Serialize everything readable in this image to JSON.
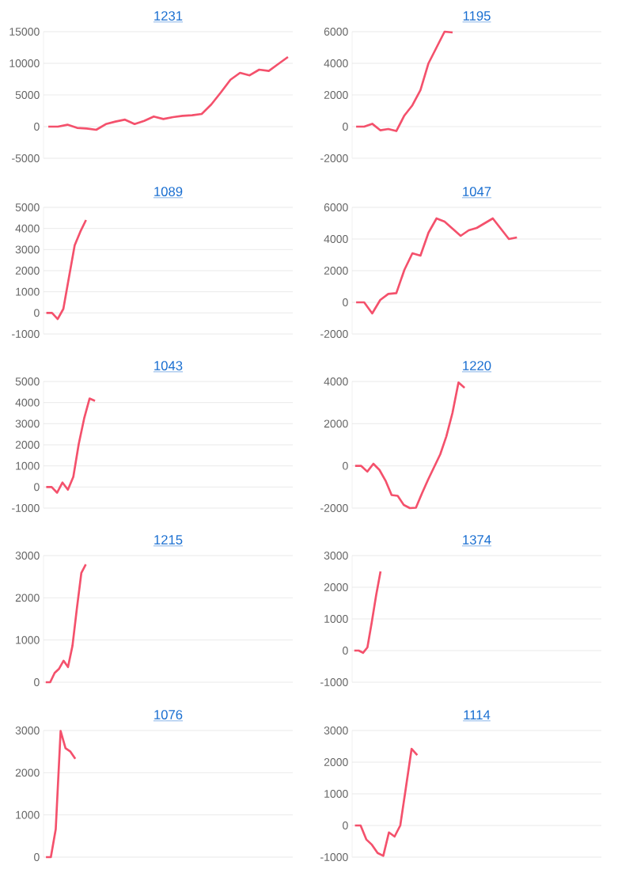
{
  "chart_data": [
    {
      "type": "line",
      "title": "1231",
      "categories": [
        null,
        null,
        null,
        null,
        null,
        null,
        null,
        null,
        null,
        null,
        null,
        null,
        null,
        null,
        null,
        null,
        null,
        null,
        null,
        null,
        null,
        null,
        null,
        null,
        null,
        null
      ],
      "series": [
        {
          "color": "#f4516c",
          "values": [
            0,
            0,
            300,
            -200,
            -300,
            -500,
            400,
            800,
            1100,
            400,
            900,
            1600,
            1200,
            1500,
            1700,
            1800,
            2000,
            3500,
            5400,
            7400,
            8500,
            8100,
            9000,
            8800,
            9900,
            11000
          ]
        }
      ],
      "ylim": [
        -5000,
        15000
      ],
      "yticks": [
        -5000,
        0,
        5000,
        10000,
        15000
      ],
      "grid": "y",
      "tick_labels": "y"
    },
    {
      "type": "line",
      "title": "1195",
      "categories": [
        null,
        null,
        null,
        null,
        null,
        null,
        null,
        null,
        null,
        null,
        null,
        null,
        null,
        null,
        null,
        null,
        null,
        null,
        null,
        null,
        null,
        null,
        null,
        null,
        null,
        null,
        null,
        null,
        null,
        null,
        null
      ],
      "series": [
        {
          "color": "#f4516c",
          "values": [
            0,
            0,
            180,
            -230,
            -150,
            -280,
            700,
            1350,
            2300,
            4000,
            5000,
            6000,
            5950,
            null,
            null,
            null,
            null,
            null,
            null,
            null,
            null,
            null,
            null,
            null,
            null,
            null,
            null,
            null,
            null,
            null,
            null
          ]
        }
      ],
      "ylim": [
        -2000,
        6000
      ],
      "yticks": [
        -2000,
        0,
        2000,
        4000,
        6000
      ],
      "grid": "y",
      "tick_labels": "y"
    },
    {
      "type": "line",
      "title": "1089",
      "categories": [
        null,
        null,
        null,
        null,
        null,
        null,
        null,
        null,
        null,
        null,
        null,
        null,
        null,
        null,
        null,
        null,
        null,
        null,
        null,
        null,
        null,
        null,
        null,
        null,
        null,
        null,
        null,
        null,
        null,
        null,
        null,
        null,
        null,
        null,
        null,
        null,
        null,
        null,
        null,
        null,
        null,
        null,
        null,
        null
      ],
      "series": [
        {
          "color": "#f4516c",
          "values": [
            0,
            0,
            -290,
            190,
            1700,
            3200,
            3850,
            4400,
            null,
            null,
            null,
            null,
            null,
            null,
            null,
            null,
            null,
            null,
            null,
            null,
            null,
            null,
            null,
            null,
            null,
            null,
            null,
            null,
            null,
            null,
            null,
            null,
            null,
            null,
            null,
            null,
            null,
            null,
            null,
            null,
            null,
            null,
            null,
            null
          ]
        }
      ],
      "ylim": [
        -1000,
        5000
      ],
      "yticks": [
        -1000,
        0,
        1000,
        2000,
        3000,
        4000,
        5000
      ],
      "grid": "y",
      "tick_labels": "y"
    },
    {
      "type": "line",
      "title": "1047",
      "categories": [
        null,
        null,
        null,
        null,
        null,
        null,
        null,
        null,
        null,
        null,
        null,
        null,
        null,
        null,
        null,
        null,
        null,
        null,
        null,
        null,
        null,
        null,
        null,
        null,
        null,
        null,
        null,
        null,
        null,
        null,
        null
      ],
      "series": [
        {
          "color": "#f4516c",
          "values": [
            0,
            0,
            -700,
            150,
            530,
            580,
            2050,
            3100,
            2950,
            4400,
            5300,
            5100,
            4650,
            4200,
            4550,
            4700,
            5000,
            5300,
            4650,
            4000,
            4100,
            null,
            null,
            null,
            null,
            null,
            null,
            null,
            null,
            null,
            null
          ]
        }
      ],
      "ylim": [
        -2000,
        6000
      ],
      "yticks": [
        -2000,
        0,
        2000,
        4000,
        6000
      ],
      "grid": "y",
      "tick_labels": "y"
    },
    {
      "type": "line",
      "title": "1043",
      "categories": [
        null,
        null,
        null,
        null,
        null,
        null,
        null,
        null,
        null,
        null,
        null,
        null,
        null,
        null,
        null,
        null,
        null,
        null,
        null,
        null,
        null,
        null,
        null,
        null,
        null,
        null,
        null,
        null,
        null,
        null,
        null,
        null,
        null,
        null,
        null,
        null,
        null,
        null,
        null,
        null,
        null,
        null,
        null,
        null,
        null,
        null
      ],
      "series": [
        {
          "color": "#f4516c",
          "values": [
            0,
            0,
            -270,
            210,
            -130,
            480,
            2040,
            3250,
            4190,
            4080,
            null,
            null,
            null,
            null,
            null,
            null,
            null,
            null,
            null,
            null,
            null,
            null,
            null,
            null,
            null,
            null,
            null,
            null,
            null,
            null,
            null,
            null,
            null,
            null,
            null,
            null,
            null,
            null,
            null,
            null,
            null,
            null,
            null,
            null,
            null,
            null
          ]
        }
      ],
      "ylim": [
        -1000,
        5000
      ],
      "yticks": [
        -1000,
        0,
        1000,
        2000,
        3000,
        4000,
        5000
      ],
      "grid": "y",
      "tick_labels": "y"
    },
    {
      "type": "line",
      "title": "1220",
      "categories": [
        null,
        null,
        null,
        null,
        null,
        null,
        null,
        null,
        null,
        null,
        null,
        null,
        null,
        null,
        null,
        null,
        null,
        null,
        null,
        null,
        null,
        null,
        null,
        null,
        null,
        null,
        null,
        null,
        null,
        null,
        null,
        null,
        null,
        null,
        null,
        null,
        null,
        null,
        null,
        null,
        null
      ],
      "series": [
        {
          "color": "#f4516c",
          "values": [
            0,
            0,
            -270,
            100,
            -190,
            -700,
            -1380,
            -1420,
            -1850,
            -2000,
            -1980,
            -1300,
            -650,
            -50,
            550,
            1400,
            2500,
            3950,
            3700,
            null,
            null,
            null,
            null,
            null,
            null,
            null,
            null,
            null,
            null,
            null,
            null,
            null,
            null,
            null,
            null,
            null,
            null,
            null,
            null,
            null,
            null
          ]
        }
      ],
      "ylim": [
        -2000,
        4000
      ],
      "yticks": [
        -2000,
        0,
        2000,
        4000
      ],
      "grid": "y",
      "tick_labels": "y"
    },
    {
      "type": "line",
      "title": "1215",
      "categories": [
        null,
        null,
        null,
        null,
        null,
        null,
        null,
        null,
        null,
        null,
        null,
        null,
        null,
        null,
        null,
        null,
        null,
        null,
        null,
        null,
        null,
        null,
        null,
        null,
        null,
        null,
        null,
        null,
        null,
        null,
        null,
        null,
        null,
        null,
        null,
        null,
        null,
        null,
        null,
        null,
        null,
        null,
        null,
        null,
        null,
        null,
        null,
        null,
        null,
        null,
        null,
        null,
        null,
        null,
        null,
        null
      ],
      "series": [
        {
          "color": "#f4516c",
          "values": [
            0,
            0,
            220,
            320,
            510,
            360,
            860,
            1750,
            2590,
            2790,
            null,
            null,
            null,
            null,
            null,
            null,
            null,
            null,
            null,
            null,
            null,
            null,
            null,
            null,
            null,
            null,
            null,
            null,
            null,
            null,
            null,
            null,
            null,
            null,
            null,
            null,
            null,
            null,
            null,
            null,
            null,
            null,
            null,
            null,
            null,
            null,
            null,
            null,
            null,
            null,
            null,
            null,
            null,
            null,
            null,
            null
          ]
        }
      ],
      "ylim": [
        0,
        3000
      ],
      "yticks": [
        0,
        1000,
        2000,
        3000
      ],
      "grid": "y",
      "tick_labels": "y"
    },
    {
      "type": "line",
      "title": "1374",
      "categories": [
        null,
        null,
        null,
        null,
        null,
        null,
        null,
        null,
        null,
        null,
        null,
        null,
        null,
        null,
        null,
        null,
        null,
        null,
        null,
        null,
        null,
        null,
        null,
        null,
        null,
        null,
        null,
        null,
        null,
        null,
        null,
        null,
        null,
        null,
        null,
        null,
        null,
        null,
        null,
        null,
        null,
        null,
        null,
        null,
        null,
        null,
        null,
        null,
        null,
        null,
        null,
        null,
        null,
        null,
        null,
        null,
        null
      ],
      "series": [
        {
          "color": "#f4516c",
          "values": [
            0,
            0,
            -70,
            100,
            900,
            1750,
            2500,
            null,
            null,
            null,
            null,
            null,
            null,
            null,
            null,
            null,
            null,
            null,
            null,
            null,
            null,
            null,
            null,
            null,
            null,
            null,
            null,
            null,
            null,
            null,
            null,
            null,
            null,
            null,
            null,
            null,
            null,
            null,
            null,
            null,
            null,
            null,
            null,
            null,
            null,
            null,
            null,
            null,
            null,
            null,
            null,
            null,
            null,
            null,
            null,
            null,
            null
          ]
        }
      ],
      "ylim": [
        -1000,
        3000
      ],
      "yticks": [
        -1000,
        0,
        1000,
        2000,
        3000
      ],
      "grid": "y",
      "tick_labels": "y"
    },
    {
      "type": "line",
      "title": "1076",
      "categories": [
        null,
        null,
        null,
        null,
        null,
        null,
        null,
        null,
        null,
        null,
        null,
        null,
        null,
        null,
        null,
        null,
        null,
        null,
        null,
        null,
        null,
        null,
        null,
        null,
        null,
        null,
        null,
        null,
        null,
        null,
        null,
        null,
        null,
        null,
        null,
        null,
        null,
        null,
        null,
        null,
        null,
        null,
        null,
        null,
        null,
        null,
        null,
        null,
        null,
        null,
        null
      ],
      "series": [
        {
          "color": "#f4516c",
          "values": [
            0,
            0,
            660,
            2990,
            2580,
            2500,
            2330,
            null,
            null,
            null,
            null,
            null,
            null,
            null,
            null,
            null,
            null,
            null,
            null,
            null,
            null,
            null,
            null,
            null,
            null,
            null,
            null,
            null,
            null,
            null,
            null,
            null,
            null,
            null,
            null,
            null,
            null,
            null,
            null,
            null,
            null,
            null,
            null,
            null,
            null,
            null,
            null,
            null,
            null,
            null,
            null
          ]
        }
      ],
      "ylim": [
        0,
        3000
      ],
      "yticks": [
        0,
        1000,
        2000,
        3000
      ],
      "grid": "y",
      "tick_labels": "y"
    },
    {
      "type": "line",
      "title": "1114",
      "categories": [
        null,
        null,
        null,
        null,
        null,
        null,
        null,
        null,
        null,
        null,
        null,
        null,
        null,
        null,
        null,
        null,
        null,
        null,
        null,
        null,
        null,
        null,
        null,
        null,
        null,
        null,
        null,
        null,
        null,
        null,
        null,
        null,
        null,
        null,
        null,
        null,
        null,
        null,
        null,
        null,
        null,
        null,
        null,
        null
      ],
      "series": [
        {
          "color": "#f4516c",
          "values": [
            0,
            0,
            -440,
            -610,
            -870,
            -960,
            -220,
            -350,
            0,
            1200,
            2420,
            2220,
            null,
            null,
            null,
            null,
            null,
            null,
            null,
            null,
            null,
            null,
            null,
            null,
            null,
            null,
            null,
            null,
            null,
            null,
            null,
            null,
            null,
            null,
            null,
            null,
            null,
            null,
            null,
            null,
            null,
            null,
            null,
            null
          ]
        }
      ],
      "ylim": [
        -1000,
        3000
      ],
      "yticks": [
        -1000,
        0,
        1000,
        2000,
        3000
      ],
      "grid": "y",
      "tick_labels": "y"
    }
  ]
}
